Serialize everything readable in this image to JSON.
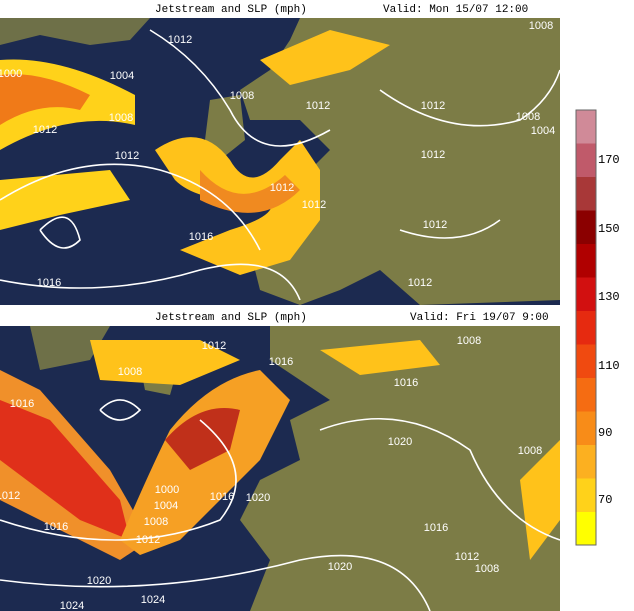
{
  "panels": [
    {
      "title": "Jetstream and SLP (mph)",
      "valid": "Valid: Mon 15/07 12:00",
      "isobar_labels": [
        "1008",
        "1000",
        "1012",
        "1004",
        "1008",
        "1012",
        "1012",
        "1008",
        "1012",
        "1012",
        "1008",
        "1004",
        "1012",
        "1012",
        "1012",
        "1016",
        "1012",
        "1016",
        "1012"
      ]
    },
    {
      "title": "Jetstream and SLP (mph)",
      "valid": "Valid: Fri 19/07 9:00",
      "isobar_labels": [
        "1012",
        "1008",
        "1016",
        "1008",
        "1016",
        "1016",
        "1020",
        "1000",
        "1004",
        "1008",
        "1016",
        "1020",
        "1012",
        "1016",
        "1012",
        "1008",
        "1016",
        "1012",
        "1008",
        "1020",
        "1024",
        "1024",
        "1020"
      ]
    }
  ],
  "colorbar": {
    "labels": [
      "170",
      "150",
      "130",
      "110",
      "90",
      "70"
    ]
  }
}
